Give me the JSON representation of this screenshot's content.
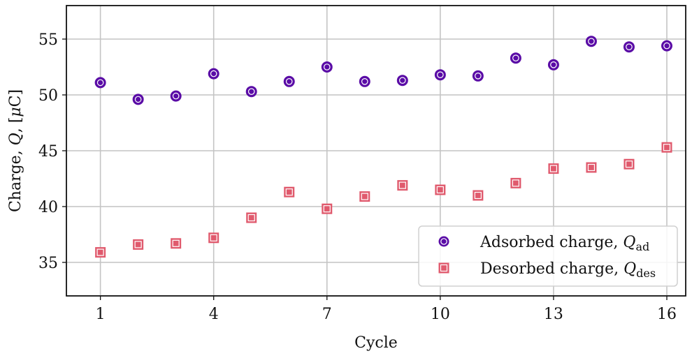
{
  "chart_data": {
    "type": "scatter",
    "title": "",
    "xlabel": "Cycle",
    "ylabel": "Charge, Q, [μC]",
    "xlim": [
      0.1,
      16.5
    ],
    "ylim": [
      32,
      58
    ],
    "xticks": [
      1,
      4,
      7,
      10,
      13,
      16
    ],
    "yticks": [
      35,
      40,
      45,
      50,
      55
    ],
    "grid": true,
    "legend_position": "lower-right",
    "series": [
      {
        "name": "Adsorbed charge, Q_ad",
        "marker": "circle",
        "color": "#5a0ca6",
        "x": [
          1,
          2,
          3,
          4,
          5,
          6,
          7,
          8,
          9,
          10,
          11,
          12,
          13,
          14,
          15,
          16
        ],
        "y": [
          51.1,
          49.6,
          49.9,
          51.9,
          50.3,
          51.2,
          52.5,
          51.2,
          51.3,
          51.8,
          51.7,
          53.3,
          52.7,
          54.8,
          54.3,
          54.4
        ]
      },
      {
        "name": "Desorbed charge, Q_des",
        "marker": "square",
        "color": "#e05a6d",
        "x": [
          1,
          2,
          3,
          4,
          5,
          6,
          7,
          8,
          9,
          10,
          11,
          12,
          13,
          14,
          15,
          16
        ],
        "y": [
          35.9,
          36.6,
          36.7,
          37.2,
          39.0,
          41.3,
          39.8,
          40.9,
          41.9,
          41.5,
          41.0,
          42.1,
          43.4,
          43.5,
          43.8,
          45.3
        ]
      }
    ]
  }
}
